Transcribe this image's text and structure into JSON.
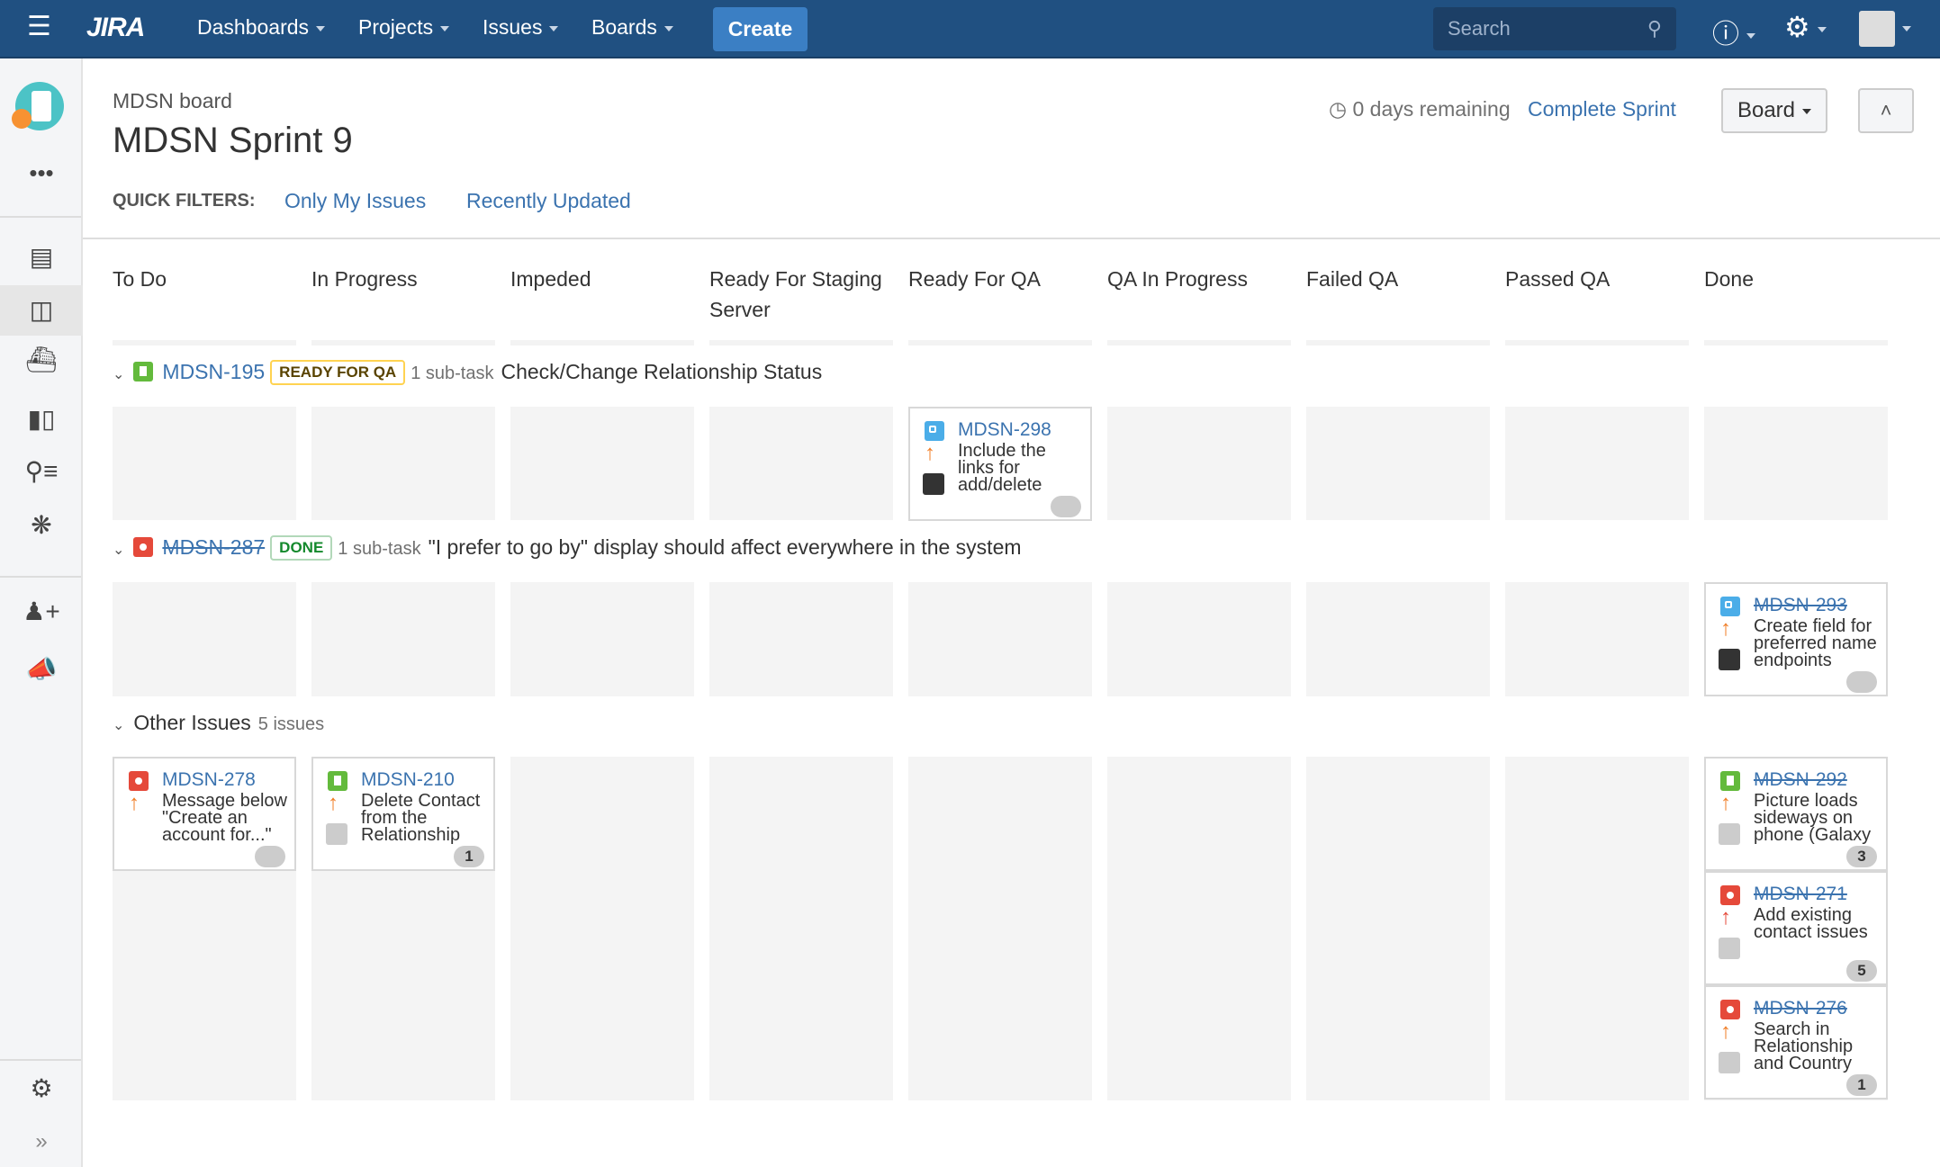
{
  "topnav": {
    "logo": "JIRA",
    "menus": [
      "Dashboards",
      "Projects",
      "Issues",
      "Boards"
    ],
    "create": "Create",
    "search_placeholder": "Search"
  },
  "board": {
    "name": "MDSN board",
    "sprint": "MDSN Sprint 9",
    "remaining": "0 days remaining",
    "complete": "Complete Sprint",
    "view_button": "Board",
    "quick_filters_label": "QUICK FILTERS:",
    "quick_filters": [
      "Only My Issues",
      "Recently Updated"
    ]
  },
  "columns": [
    "To Do",
    "In Progress",
    "Impeded",
    "Ready For Staging Server",
    "Ready For QA",
    "QA In Progress",
    "Failed QA",
    "Passed QA",
    "Done"
  ],
  "colors": {
    "topbar": "#205081",
    "link": "#3b73af",
    "story": "#63ba3c",
    "bug": "#e5493a",
    "subtask": "#4bade8",
    "priority_major": "#f07d26",
    "priority_critical": "#e5493a"
  },
  "swimlanes": [
    {
      "key": "MDSN-195",
      "type": "story",
      "done": false,
      "status": "READY FOR QA",
      "subtasks": "1 sub-task",
      "summary": "Check/Change Relationship Status",
      "cards": [
        {
          "column": 4,
          "key": "MDSN-298",
          "type": "subtask",
          "priority": "major",
          "done": false,
          "summary": "Include the links for add/delete",
          "avatar": "custom",
          "badge": ""
        }
      ]
    },
    {
      "key": "MDSN-287",
      "type": "bug",
      "done": true,
      "status": "DONE",
      "subtasks": "1 sub-task",
      "summary": "\"I prefer to go by\" display should affect everywhere in the system",
      "cards": [
        {
          "column": 8,
          "key": "MDSN-293",
          "type": "subtask",
          "priority": "major",
          "done": true,
          "summary": "Create field for preferred name endpoints",
          "avatar": "custom",
          "badge": ""
        }
      ]
    },
    {
      "title": "Other Issues",
      "count": "5 issues",
      "cards": [
        {
          "column": 0,
          "key": "MDSN-278",
          "type": "bug",
          "priority": "major",
          "done": false,
          "summary": "Message below \"Create an account for...\"",
          "avatar": "none",
          "badge": ""
        },
        {
          "column": 1,
          "key": "MDSN-210",
          "type": "story",
          "priority": "major",
          "done": false,
          "summary": "Delete Contact from the Relationship",
          "avatar": "default",
          "badge": "1"
        },
        {
          "column": 8,
          "key": "MDSN-292",
          "type": "story",
          "priority": "major",
          "done": true,
          "summary": "Picture loads sideways on phone (Galaxy",
          "avatar": "default",
          "badge": "3"
        },
        {
          "column": 8,
          "key": "MDSN-271",
          "type": "bug",
          "priority": "critical",
          "done": true,
          "summary": "Add existing contact issues",
          "avatar": "default",
          "badge": "5"
        },
        {
          "column": 8,
          "key": "MDSN-276",
          "type": "bug",
          "priority": "major",
          "done": true,
          "summary": "Search in Relationship and Country",
          "avatar": "default",
          "badge": "1"
        }
      ]
    }
  ]
}
